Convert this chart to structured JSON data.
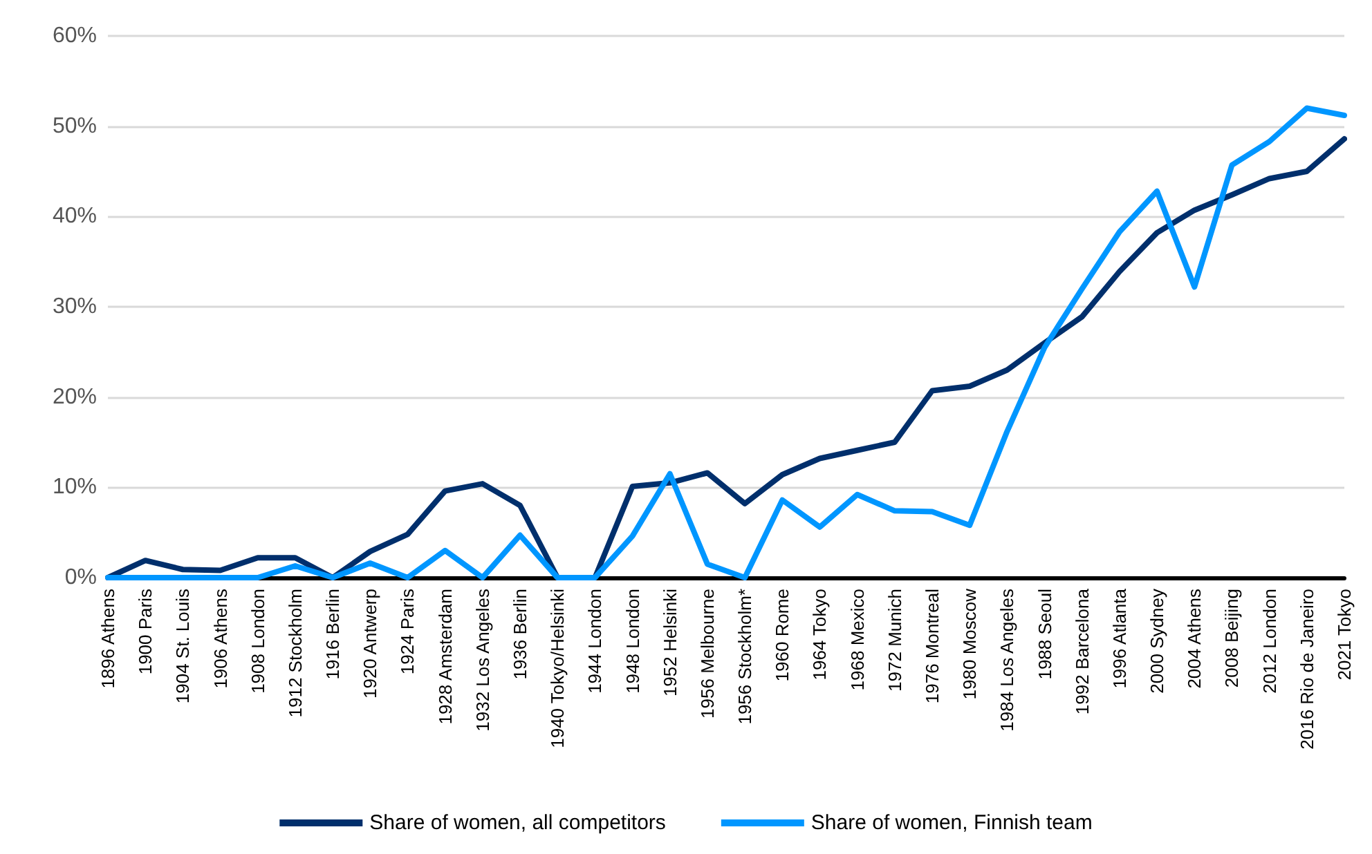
{
  "chart_data": {
    "type": "line",
    "categories": [
      "1896 Athens",
      "1900 Paris",
      "1904 St. Louis",
      "1906 Athens",
      "1908 London",
      "1912 Stockholm",
      "1916 Berlin",
      "1920 Antwerp",
      "1924 Paris",
      "1928 Amsterdam",
      "1932 Los Angeles",
      "1936 Berlin",
      "1940 Tokyo/Helsinki",
      "1944 London",
      "1948 London",
      "1952 Helsinki",
      "1956 Melbourne",
      "1956 Stockholm*",
      "1960 Rome",
      "1964 Tokyo",
      "1968 Mexico",
      "1972 Munich",
      "1976 Montreal",
      "1980 Moscow",
      "1984 Los Angeles",
      "1988 Seoul",
      "1992 Barcelona",
      "1996 Atlanta",
      "2000 Sydney",
      "2004 Athens",
      "2008 Beijing",
      "2012 London",
      "2016 Rio de Janeiro",
      "2021 Tokyo"
    ],
    "series": [
      {
        "name": "Share of women, all competitors",
        "color": "#002f6c",
        "values": [
          0,
          1.9,
          0.9,
          0.8,
          2.2,
          2.2,
          0,
          2.9,
          4.8,
          9.6,
          10.4,
          8.0,
          0,
          0,
          10.1,
          10.5,
          11.6,
          8.2,
          11.4,
          13.2,
          14.1,
          15.0,
          20.7,
          21.2,
          23.0,
          26.0,
          28.9,
          33.9,
          38.2,
          40.7,
          42.4,
          44.2,
          45.0,
          48.6
        ]
      },
      {
        "name": "Share of women, Finnish team",
        "color": "#0096ff",
        "values": [
          0,
          0,
          0,
          0,
          0,
          1.3,
          0,
          1.6,
          0,
          3.0,
          0,
          4.7,
          0,
          0,
          4.6,
          11.5,
          1.5,
          0,
          8.6,
          5.6,
          9.2,
          7.4,
          7.3,
          5.8,
          16.2,
          25.5,
          32.0,
          38.3,
          42.8,
          32.2,
          45.7,
          48.3,
          52.0,
          51.2
        ]
      }
    ],
    "ylim": [
      0,
      60
    ],
    "yticks": [
      {
        "value": 0,
        "label": "0%"
      },
      {
        "value": 10,
        "label": "10%"
      },
      {
        "value": 20,
        "label": "20%"
      },
      {
        "value": 30,
        "label": "30%"
      },
      {
        "value": 40,
        "label": "40%"
      },
      {
        "value": 50,
        "label": "50%"
      },
      {
        "value": 60,
        "label": "60%"
      }
    ],
    "grid": "y",
    "legend": "bottom",
    "marker": "none",
    "line_style": "solid"
  }
}
